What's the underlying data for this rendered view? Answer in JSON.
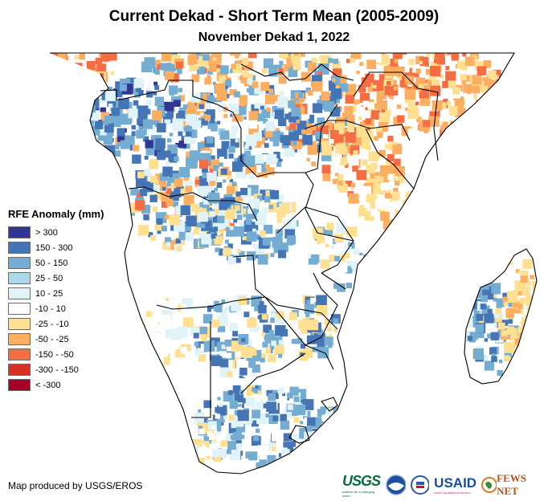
{
  "title": "Current Dekad - Short Term Mean (2005-2009)",
  "subtitle": "November Dekad 1, 2022",
  "legend": {
    "title": "RFE Anomaly (mm)",
    "items": [
      {
        "label": "> 300",
        "color": "#313695"
      },
      {
        "label": "150 - 300",
        "color": "#4575b4"
      },
      {
        "label": "50 - 150",
        "color": "#74add1"
      },
      {
        "label": "25 - 50",
        "color": "#abd9e9"
      },
      {
        "label": "10 - 25",
        "color": "#e0f3f8"
      },
      {
        "label": "-10 - 10",
        "color": "#ffffff"
      },
      {
        "label": "-25 - -10",
        "color": "#fee090"
      },
      {
        "label": "-50 - -25",
        "color": "#fdae61"
      },
      {
        "label": "-150 - -50",
        "color": "#f46d43"
      },
      {
        "label": "-300 - -150",
        "color": "#d73027"
      },
      {
        "label": "< -300",
        "color": "#a50026"
      }
    ]
  },
  "credit": "Map produced by USGS/EROS",
  "logos": [
    "USGS",
    "NOAA",
    "USAID",
    "FEWS NET"
  ],
  "logo_texts": {
    "usgs": "USGS",
    "usaid": "USAID",
    "fews": "FEWS NET",
    "usgs_tag": "science for a changing world",
    "usaid_tag": "FROM THE AMERICAN PEOPLE"
  }
}
